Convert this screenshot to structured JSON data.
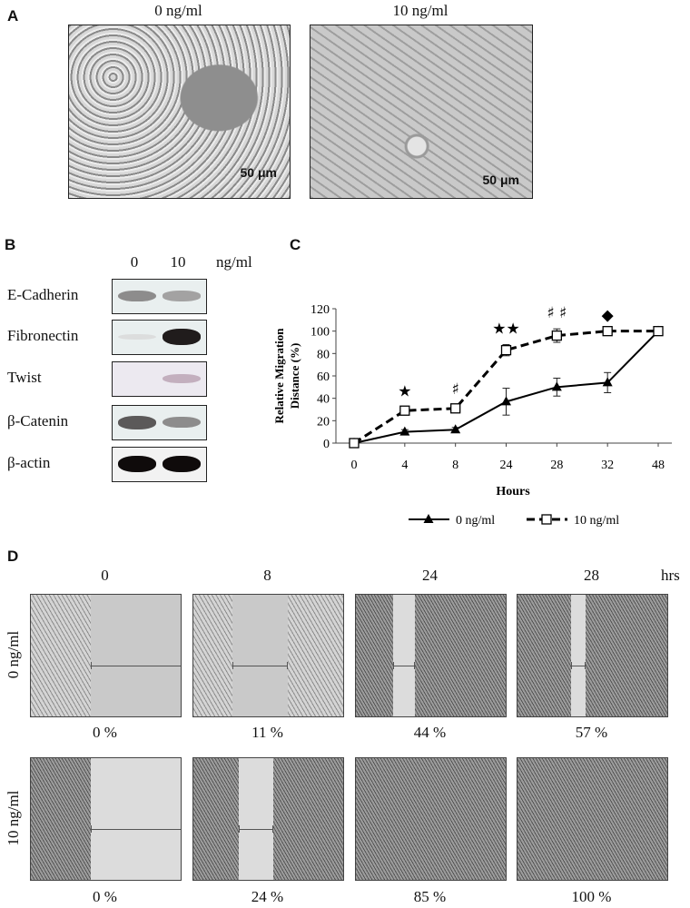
{
  "panel_a": {
    "label": "A",
    "images": [
      {
        "caption": "0 ng/ml",
        "scale": "50 μm"
      },
      {
        "caption": "10 ng/ml",
        "scale": "50 μm"
      }
    ]
  },
  "panel_b": {
    "label": "B",
    "dose_labels": [
      "0",
      "10"
    ],
    "unit": "ng/ml",
    "proteins": [
      "E-Cadherin",
      "Fibronectin",
      "Twist",
      "β-Catenin",
      "β-actin"
    ],
    "band_intensity": [
      [
        0.55,
        0.45
      ],
      [
        0.08,
        0.95
      ],
      [
        0.0,
        0.35
      ],
      [
        0.75,
        0.55
      ],
      [
        1.0,
        1.0
      ]
    ]
  },
  "panel_c": {
    "label": "C"
  },
  "chart_data": {
    "type": "line",
    "categories": [
      "0",
      "4",
      "8",
      "24",
      "28",
      "32",
      "48"
    ],
    "ylabel": "Relative Migration Distance (%)",
    "xlabel": "Hours",
    "ylim": [
      0,
      120
    ],
    "yticks": [
      "0",
      "20",
      "40",
      "60",
      "80",
      "100",
      "120"
    ],
    "legend_position": "bottom",
    "series": [
      {
        "name": "0 ng/ml",
        "values": [
          0,
          10,
          12,
          37,
          50,
          54,
          100
        ],
        "errors": [
          0,
          2,
          2,
          12,
          8,
          9,
          0
        ],
        "style": "solid",
        "marker": "filled-triangle",
        "color": "#000000"
      },
      {
        "name": "10 ng/ml",
        "values": [
          0,
          29,
          31,
          83,
          96,
          100,
          100
        ],
        "errors": [
          0,
          3,
          3,
          5,
          6,
          0,
          0
        ],
        "style": "dashed",
        "marker": "open-square",
        "color": "#000000"
      }
    ],
    "annotations": [
      {
        "category": "4",
        "text": "★"
      },
      {
        "category": "8",
        "text": "♯"
      },
      {
        "category": "24",
        "text": "★★"
      },
      {
        "category": "28",
        "text": "♯ ♯"
      },
      {
        "category": "32",
        "text": "◆"
      }
    ]
  },
  "panel_d": {
    "label": "D",
    "time_labels": [
      "0",
      "8",
      "24",
      "28"
    ],
    "time_unit": "hrs",
    "rows": [
      {
        "label": "0 ng/ml",
        "percents": [
          "0 %",
          "11 %",
          "44 %",
          "57 %"
        ]
      },
      {
        "label": "10 ng/ml",
        "percents": [
          "0 %",
          "24 %",
          "85 %",
          "100 %"
        ]
      }
    ]
  }
}
